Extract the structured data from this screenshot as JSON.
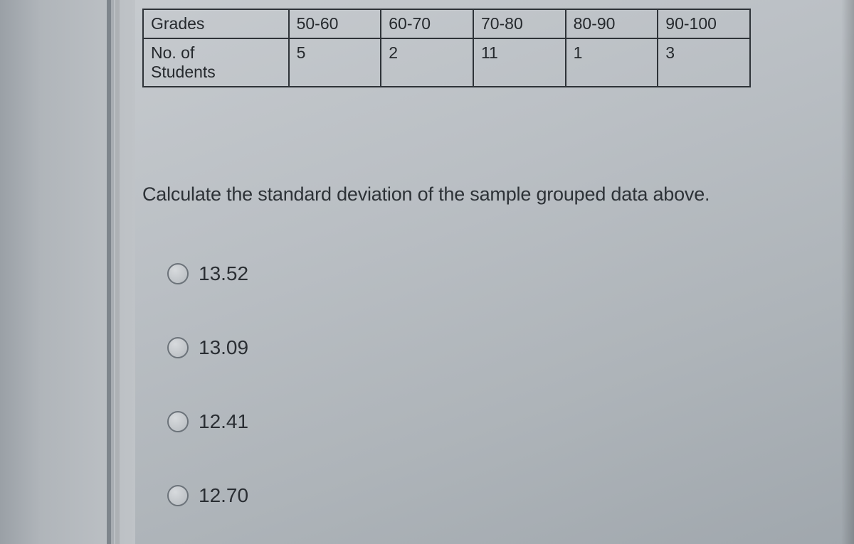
{
  "table": {
    "row1_header": "Grades",
    "row2_header": "No. of\nStudents",
    "cols": [
      "50-60",
      "60-70",
      "70-80",
      "80-90",
      "90-100"
    ],
    "vals": [
      "5",
      "2",
      "11",
      "1",
      "3"
    ],
    "border_color": "#2e3338",
    "cell_fontsize": 23,
    "header_col_width": 205,
    "data_col_width": 130
  },
  "question": "Calculate the standard deviation of the sample grouped data above.",
  "options": [
    {
      "label": "13.52"
    },
    {
      "label": "13.09"
    },
    {
      "label": "12.41"
    },
    {
      "label": "12.70"
    }
  ],
  "colors": {
    "page_bg_top": "#c8ccd0",
    "page_bg_bottom": "#a0a7ad",
    "text": "#2a2e33",
    "radio_border": "#6c737a"
  },
  "typography": {
    "question_fontsize": 27,
    "option_fontsize": 28,
    "font_family": "Arial"
  }
}
